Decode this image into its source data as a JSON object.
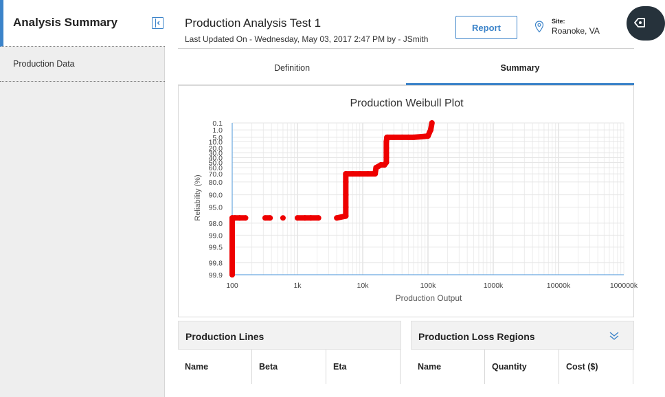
{
  "sidebar": {
    "title": "Analysis Summary",
    "items": [
      {
        "label": "Production Data"
      }
    ]
  },
  "header": {
    "title": "Production Analysis Test 1",
    "subtitle": "Last Updated On - Wednesday, May 03, 2017 2:47 PM by - JSmith",
    "report_label": "Report",
    "site_label": "Site:",
    "site_value": "Roanoke, VA"
  },
  "tabs": [
    {
      "label": "Definition",
      "active": false
    },
    {
      "label": "Summary",
      "active": true
    }
  ],
  "colors": {
    "accent": "#3b83c9",
    "series": "#ee0000"
  },
  "icons": [
    "collapse-sidebar-icon",
    "map-pin-icon",
    "navigation-icon",
    "expand-chevrons-icon"
  ],
  "chart_data": {
    "type": "scatter",
    "title": "Production Weibull Plot",
    "xlabel": "Production Output",
    "ylabel": "Reliability (%)",
    "x_scale": "log",
    "xlim": [
      100,
      100000000
    ],
    "x_tick_labels": [
      "100",
      "1k",
      "10k",
      "100k",
      "1000k",
      "10000k",
      "100000k"
    ],
    "y_tick_labels": [
      "0.1",
      "1.0",
      "5.0",
      "10.0",
      "20.0",
      "30.0",
      "40.0",
      "50.0",
      "60.0",
      "70.0",
      "80.0",
      "90.0",
      "95.0",
      "98.0",
      "99.0",
      "99.5",
      "99.8",
      "99.9"
    ],
    "grid": true,
    "series": [
      {
        "points": [
          [
            100,
            99.9
          ],
          [
            100,
            99.8
          ],
          [
            100,
            99.5
          ],
          [
            100,
            99.0
          ],
          [
            100,
            98.5
          ],
          [
            100,
            98.0
          ],
          [
            100,
            97.3
          ],
          [
            110,
            97.3
          ],
          [
            130,
            97.3
          ],
          [
            160,
            97.3
          ],
          [
            320,
            97.3
          ],
          [
            380,
            97.3
          ],
          [
            600,
            97.3
          ],
          [
            1000,
            97.3
          ],
          [
            1300,
            97.3
          ],
          [
            1600,
            97.3
          ],
          [
            2100,
            97.3
          ],
          [
            4000,
            97.3
          ],
          [
            5500,
            97.0
          ],
          [
            5500,
            95.0
          ],
          [
            5500,
            90.0
          ],
          [
            5500,
            80.0
          ],
          [
            5500,
            70.0
          ],
          [
            7000,
            70.0
          ],
          [
            9000,
            70.0
          ],
          [
            12000,
            70.0
          ],
          [
            15500,
            70.0
          ],
          [
            16000,
            60.0
          ],
          [
            19000,
            55.0
          ],
          [
            21500,
            55.0
          ],
          [
            23000,
            50.0
          ],
          [
            23000,
            40.0
          ],
          [
            23000,
            30.0
          ],
          [
            23000,
            20.0
          ],
          [
            23000,
            10.0
          ],
          [
            23500,
            5.0
          ],
          [
            30000,
            5.0
          ],
          [
            40000,
            5.0
          ],
          [
            50000,
            5.0
          ],
          [
            60000,
            5.0
          ],
          [
            80000,
            4.5
          ],
          [
            100000,
            4.0
          ],
          [
            105000,
            2.0
          ],
          [
            110000,
            1.0
          ],
          [
            115000,
            0.1
          ]
        ]
      }
    ]
  },
  "panels": {
    "production_lines": {
      "title": "Production Lines",
      "columns": [
        "Name",
        "Beta",
        "Eta"
      ]
    },
    "loss_regions": {
      "title": "Production Loss Regions",
      "columns": [
        "Name",
        "Quantity",
        "Cost ($)"
      ]
    }
  }
}
